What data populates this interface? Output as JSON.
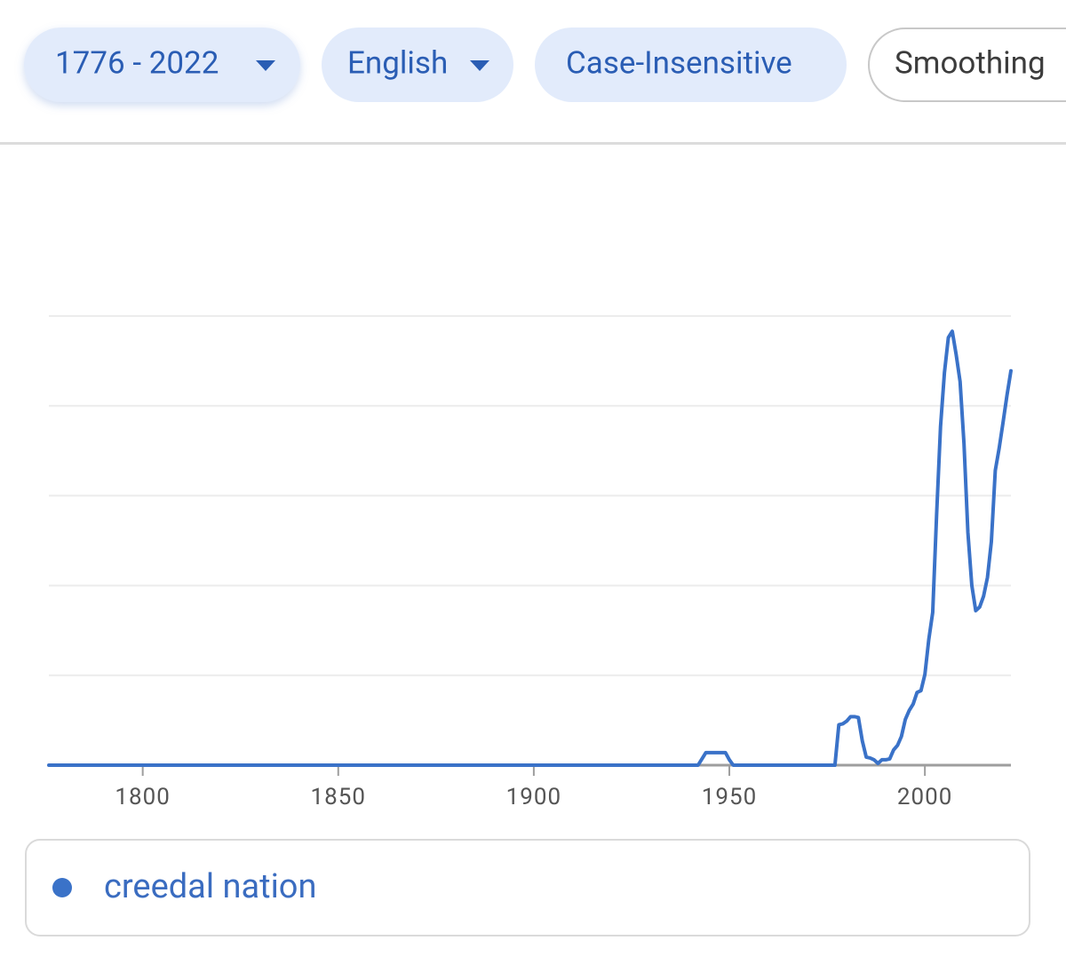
{
  "controls": {
    "date_range": "1776 - 2022",
    "corpus": "English",
    "case": "Case-Insensitive",
    "smoothing": "Smoothing"
  },
  "chart_data": {
    "type": "line",
    "x": [
      1776,
      1942,
      1943,
      1944,
      1949,
      1950,
      1951,
      1976,
      1977,
      1978,
      1979,
      1980,
      1981,
      1982,
      1983,
      1984,
      1985,
      1986,
      1987,
      1988,
      1989,
      1990,
      1991,
      1992,
      1993,
      1994,
      1995,
      1996,
      1997,
      1998,
      1999,
      2000,
      2001,
      2002,
      2003,
      2004,
      2005,
      2006,
      2007,
      2008,
      2009,
      2010,
      2011,
      2012,
      2013,
      2014,
      2015,
      2016,
      2017,
      2018,
      2019,
      2020,
      2021,
      2022
    ],
    "series": [
      {
        "name": "creedal nation",
        "color": "#3a72c8",
        "values": [
          0,
          0,
          0.07,
          0.14,
          0.14,
          0.06,
          0,
          0,
          0,
          0.45,
          0.46,
          0.49,
          0.54,
          0.54,
          0.53,
          0.27,
          0.09,
          0.08,
          0.06,
          0.02,
          0.06,
          0.06,
          0.07,
          0.17,
          0.22,
          0.32,
          0.51,
          0.61,
          0.68,
          0.81,
          0.83,
          1.01,
          1.4,
          1.7,
          2.79,
          3.77,
          4.37,
          4.76,
          4.83,
          4.57,
          4.27,
          3.58,
          2.59,
          2.0,
          1.72,
          1.76,
          1.88,
          2.09,
          2.49,
          3.28,
          3.53,
          3.82,
          4.12,
          4.39
        ]
      }
    ],
    "xlim": [
      1776,
      2022
    ],
    "xticks": [
      1800,
      1850,
      1900,
      1950,
      2000
    ],
    "ylim": [
      0,
      5
    ],
    "yticks": [
      0,
      1,
      2,
      3,
      4,
      5
    ],
    "ytick_labels": false,
    "grid": true
  }
}
